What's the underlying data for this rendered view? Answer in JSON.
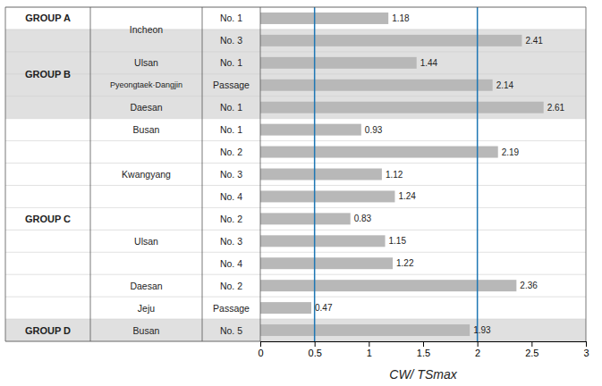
{
  "chart_data": {
    "type": "bar",
    "orientation": "horizontal",
    "categories": [
      "No. 1",
      "No. 3",
      "No. 1",
      "Passage",
      "No. 1",
      "No. 1",
      "No. 2",
      "No. 3",
      "No. 4",
      "No. 2",
      "No. 3",
      "No. 4",
      "No. 2",
      "Passage",
      "No. 5"
    ],
    "groups": [
      "GROUP A",
      "GROUP B",
      "GROUP B",
      "GROUP B",
      "GROUP B",
      "GROUP C",
      "GROUP C",
      "GROUP C",
      "GROUP C",
      "GROUP C",
      "GROUP C",
      "GROUP C",
      "GROUP C",
      "GROUP C",
      "GROUP D"
    ],
    "ports": [
      "Incheon",
      "Incheon",
      "Ulsan",
      "Pyeongtaek·Dangjin",
      "Daesan",
      "Busan",
      "Kwangyang",
      "Kwangyang",
      "Kwangyang",
      "Ulsan",
      "Ulsan",
      "Ulsan",
      "Daesan",
      "Jeju",
      "Busan"
    ],
    "values": [
      1.18,
      2.41,
      1.44,
      2.14,
      2.61,
      0.93,
      2.19,
      1.12,
      1.24,
      0.83,
      1.15,
      1.22,
      2.36,
      0.47,
      1.93
    ],
    "color": "#b8b8b8",
    "reference_lines": [
      0.5,
      2.0
    ],
    "xlim": [
      0,
      3
    ],
    "xticks": [
      0,
      0.5,
      1,
      1.5,
      2,
      2.5,
      3
    ],
    "x_label": "CW/ TSmax",
    "data_labels": true,
    "grid": false
  }
}
